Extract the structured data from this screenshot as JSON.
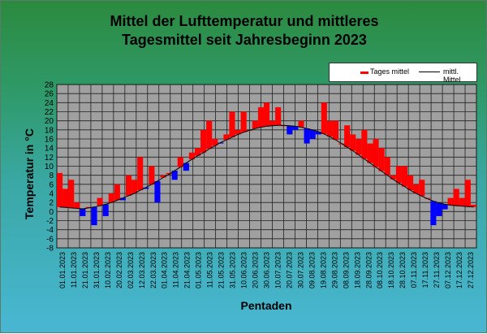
{
  "chart_data": {
    "type": "bar",
    "title": "Mittel der Lufttemperatur und mittleres\nTagesmittel seit Jahresbeginn 2023",
    "xlabel": "Pentaden",
    "ylabel": "Temperatur in °C",
    "ylim": [
      -8,
      28
    ],
    "ytick_step": 2,
    "grid": true,
    "legend_position": "top-right",
    "legend": [
      "Tages mittel",
      "mittl. Mittel"
    ],
    "colors": {
      "above_mean": "#ff0000",
      "below_mean": "#0000ff",
      "mean_line": "#000000",
      "plot_background": "#a0a0a0",
      "grid": "#202020"
    },
    "categories": [
      "01.01.2023",
      "11.01.2023",
      "21.01.2023",
      "31.01.2023",
      "10.02.2023",
      "20.02.2023",
      "02.03.2023",
      "12.03.2023",
      "22.03.2023",
      "01.04.2023",
      "11.04.2023",
      "21.04.2023",
      "01.05.2023",
      "11.05.2023",
      "21.05.2023",
      "31.05.2023",
      "10.06.2023",
      "20.06.2023",
      "30.06.2023",
      "10.07.2023",
      "20.07.2023",
      "30.07.2023",
      "09.08.2023",
      "19.08.2023",
      "29.08.2023",
      "08.09.2023",
      "18.09.2023",
      "28.09.2023",
      "08.10.2023",
      "18.10.2023",
      "28.10.2023",
      "07.11.2023",
      "17.11.2023",
      "27.11.2023",
      "07.12.2023",
      "17.12.2023",
      "27.12.2023"
    ],
    "x": [
      "01.01.2023",
      "06.01.2023",
      "11.01.2023",
      "16.01.2023",
      "21.01.2023",
      "26.01.2023",
      "31.01.2023",
      "05.02.2023",
      "10.02.2023",
      "15.02.2023",
      "20.02.2023",
      "25.02.2023",
      "02.03.2023",
      "07.03.2023",
      "12.03.2023",
      "17.03.2023",
      "22.03.2023",
      "27.03.2023",
      "01.04.2023",
      "06.04.2023",
      "11.04.2023",
      "16.04.2023",
      "21.04.2023",
      "26.04.2023",
      "01.05.2023",
      "06.05.2023",
      "11.05.2023",
      "16.05.2023",
      "21.05.2023",
      "26.05.2023",
      "31.05.2023",
      "05.06.2023",
      "10.06.2023",
      "15.06.2023",
      "20.06.2023",
      "25.06.2023",
      "30.06.2023",
      "05.07.2023",
      "10.07.2023",
      "15.07.2023",
      "20.07.2023",
      "25.07.2023",
      "30.07.2023",
      "04.08.2023",
      "09.08.2023",
      "14.08.2023",
      "19.08.2023",
      "24.08.2023",
      "29.08.2023",
      "03.09.2023",
      "08.09.2023",
      "13.09.2023",
      "18.09.2023",
      "23.09.2023",
      "28.09.2023",
      "03.10.2023",
      "08.10.2023",
      "13.10.2023",
      "18.10.2023",
      "23.10.2023",
      "28.10.2023",
      "02.11.2023",
      "07.11.2023",
      "12.11.2023",
      "17.11.2023",
      "22.11.2023",
      "27.11.2023",
      "02.12.2023",
      "07.12.2023",
      "12.12.2023",
      "17.12.2023",
      "22.12.2023",
      "27.12.2023"
    ],
    "series": [
      {
        "name": "Tages mittel",
        "values": [
          8.5,
          5,
          7,
          2,
          -1,
          1,
          -3,
          3,
          -1,
          4,
          6,
          2.5,
          8,
          7,
          12,
          5,
          10,
          2,
          8,
          8.5,
          7,
          12,
          9,
          13,
          14,
          18,
          20,
          16,
          15,
          17,
          22,
          18,
          22,
          18,
          20,
          23,
          24,
          20,
          23,
          19,
          17,
          18,
          20,
          15,
          16,
          17,
          24,
          20,
          20,
          15,
          19,
          17,
          16,
          18,
          15,
          16,
          14,
          12,
          8,
          10,
          10,
          8,
          6,
          7,
          3,
          -3,
          -1,
          0.5,
          3,
          5,
          3,
          7,
          1.5
        ]
      },
      {
        "name": "mittl. Mittel",
        "values": [
          1,
          0.9,
          0.8,
          0.7,
          0.6,
          0.8,
          1,
          1.3,
          1.6,
          2,
          2.5,
          3,
          3.5,
          4,
          4.7,
          5.3,
          6,
          6.7,
          7.5,
          8.2,
          9,
          9.8,
          10.7,
          11.5,
          12.3,
          13,
          13.8,
          14.5,
          15.2,
          15.8,
          16.4,
          17,
          17.5,
          17.9,
          18.3,
          18.6,
          18.8,
          18.9,
          19,
          19,
          18.9,
          18.8,
          18.6,
          18.3,
          18,
          17.6,
          17.1,
          16.5,
          15.8,
          15,
          14.2,
          13.4,
          12.5,
          11.6,
          10.7,
          9.8,
          8.9,
          8,
          7.1,
          6.3,
          5.5,
          4.7,
          4,
          3.4,
          2.8,
          2.3,
          1.9,
          1.6,
          1.4,
          1.3,
          1.2,
          1.1,
          1
        ]
      }
    ]
  }
}
